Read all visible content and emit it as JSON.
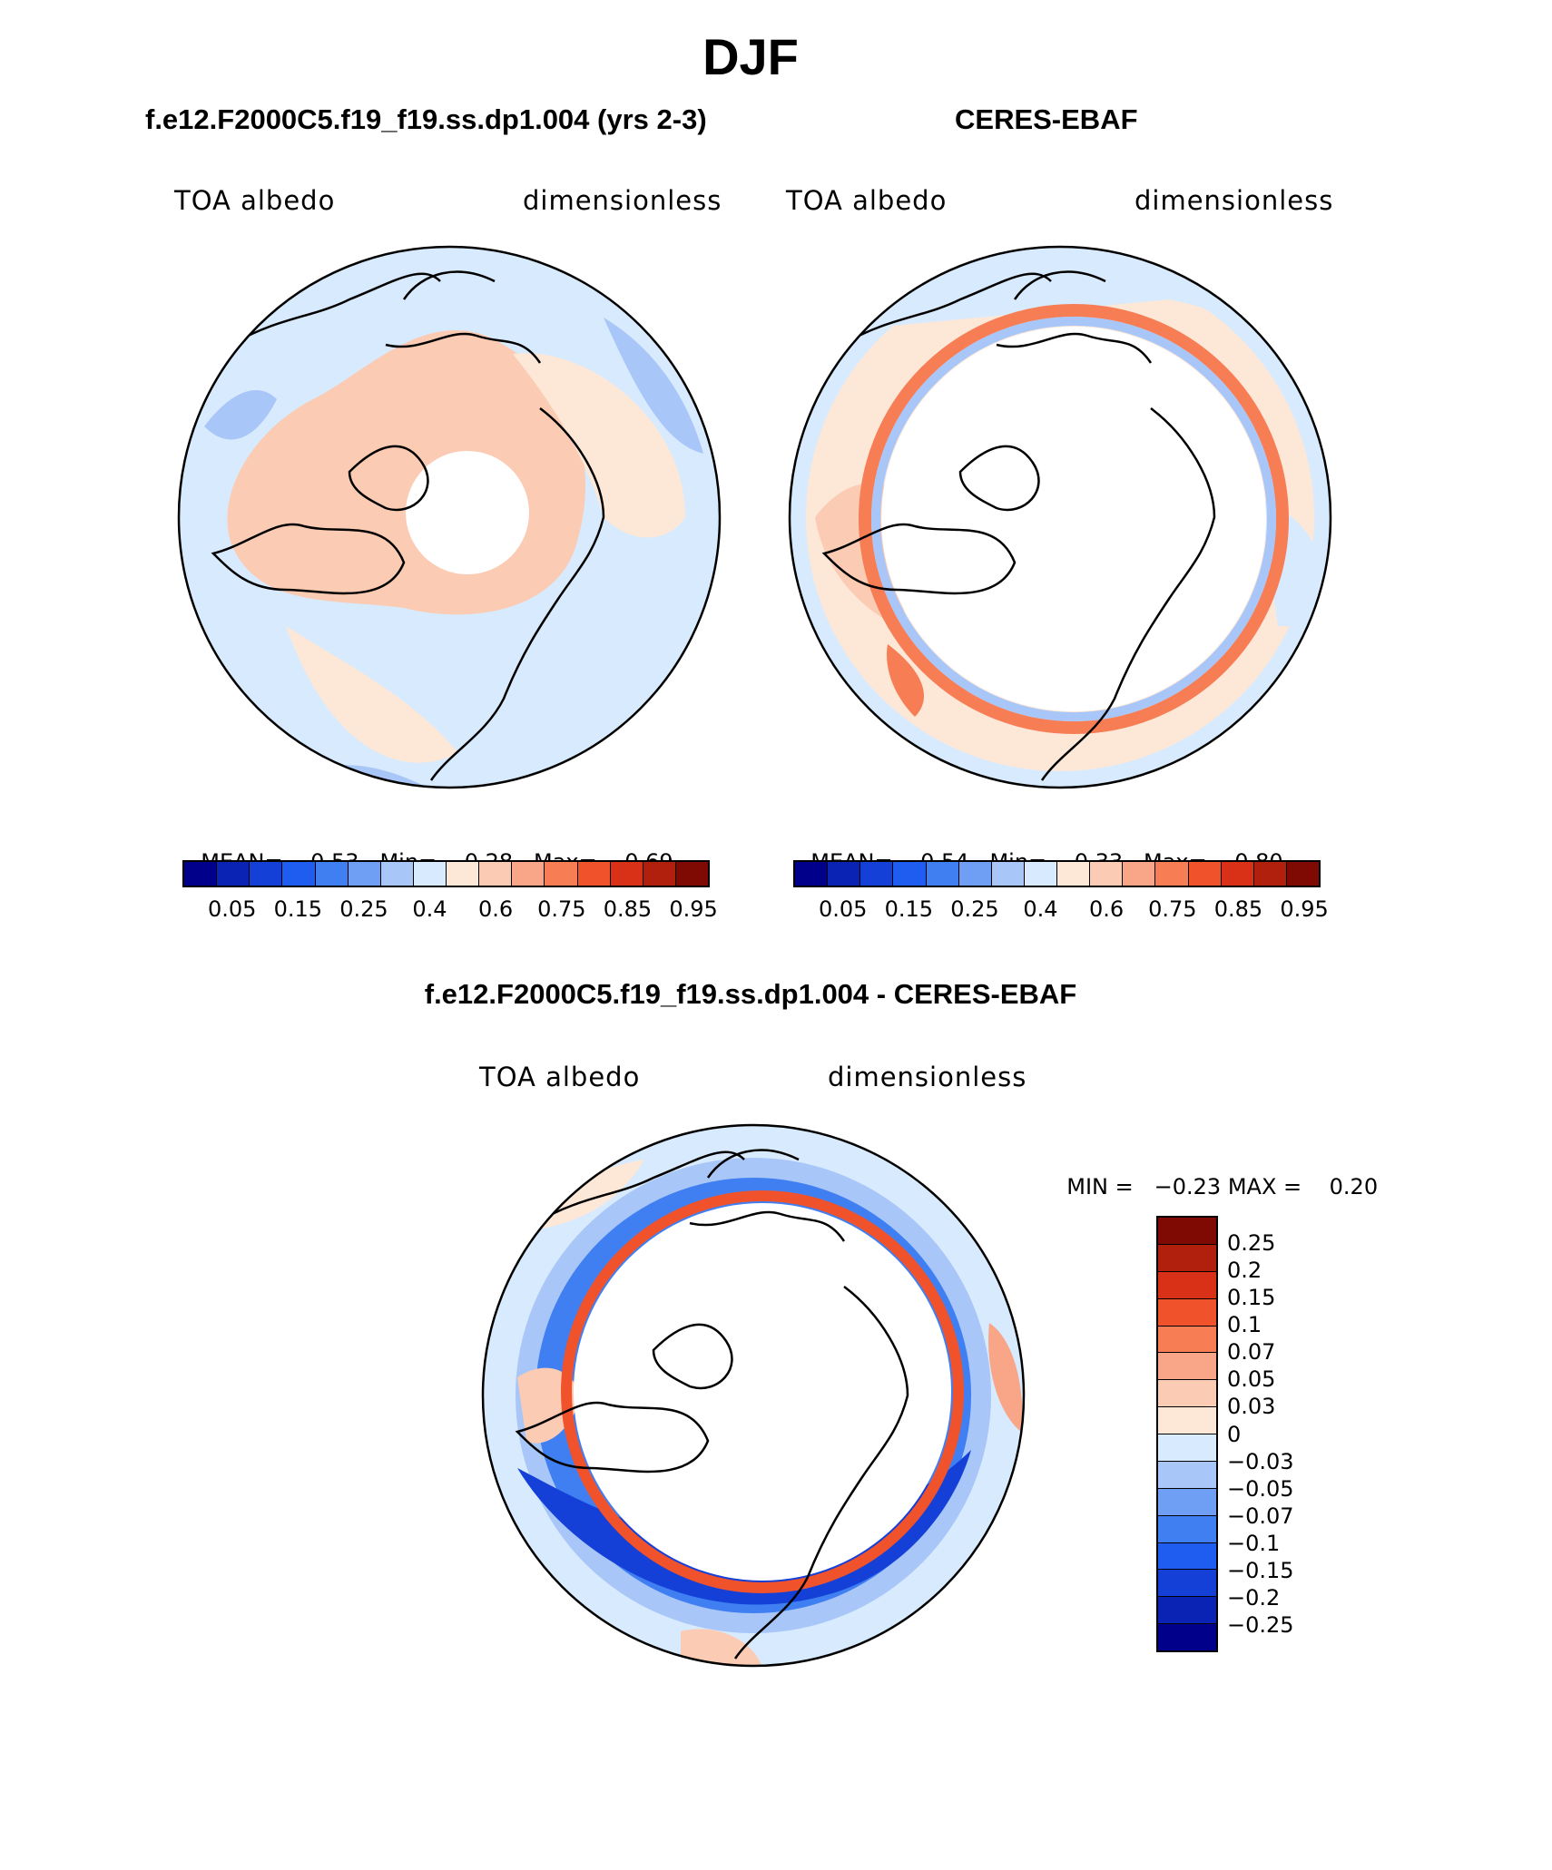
{
  "figure": {
    "season": "DJF",
    "diff_title": "f.e12.F2000C5.f19_f19.ss.dp1.004 - CERES-EBAF"
  },
  "panels": [
    {
      "case_title": "f.e12.F2000C5.f19_f19.ss.dp1.004 (yrs 2-3)",
      "variable": "TOA albedo",
      "units": "dimensionless",
      "stats": {
        "mean_label": "MEAN=",
        "mean": "0.53",
        "min_label": "Min=",
        "min": "0.28",
        "max_label": "Max=",
        "max": "0.69"
      }
    },
    {
      "case_title": "CERES-EBAF",
      "variable": "TOA albedo",
      "units": "dimensionless",
      "stats": {
        "mean_label": "MEAN=",
        "mean": "0.54",
        "min_label": "Min=",
        "min": "0.33",
        "max_label": "Max=",
        "max": "0.80"
      }
    },
    {
      "variable": "TOA albedo",
      "units": "dimensionless",
      "stats": {
        "min_label": "MIN =",
        "min": "−0.23",
        "max_label": "MAX =",
        "max": "0.20"
      }
    }
  ],
  "colorbar_horizontal": {
    "colors": [
      "#00008b",
      "#0a23b4",
      "#1540d8",
      "#1f5cf0",
      "#3f7ff2",
      "#6e9ff5",
      "#a9c6f8",
      "#d8eafd",
      "#fde8d8",
      "#fbcbb3",
      "#f9a688",
      "#f77d55",
      "#f0532c",
      "#d93018",
      "#b0200d",
      "#7e0a03"
    ],
    "labels": [
      "0.05",
      "0.15",
      "0.25",
      "0.4",
      "0.6",
      "0.75",
      "0.85",
      "0.95"
    ]
  },
  "colorbar_vertical": {
    "colors": [
      "#7e0a03",
      "#b0200d",
      "#d93018",
      "#f0532c",
      "#f77d55",
      "#f9a688",
      "#fbcbb3",
      "#fde8d8",
      "#d8eafd",
      "#a9c6f8",
      "#6e9ff5",
      "#3f7ff2",
      "#1f5cf0",
      "#1540d8",
      "#0a23b4",
      "#00008b"
    ],
    "labels": [
      "0.25",
      "0.2",
      "0.15",
      "0.1",
      "0.07",
      "0.05",
      "0.03",
      "0",
      "−0.03",
      "−0.05",
      "−0.07",
      "−0.1",
      "−0.15",
      "−0.2",
      "−0.25"
    ]
  },
  "colors": {
    "ocean_light": "#d8eafd",
    "land_warm": "#fbcbb3",
    "warm_pale": "#fde8d8",
    "blue_mid": "#a9c6f8",
    "blue_dark": "#1f5cf0",
    "ring_red": "#f0532c"
  }
}
